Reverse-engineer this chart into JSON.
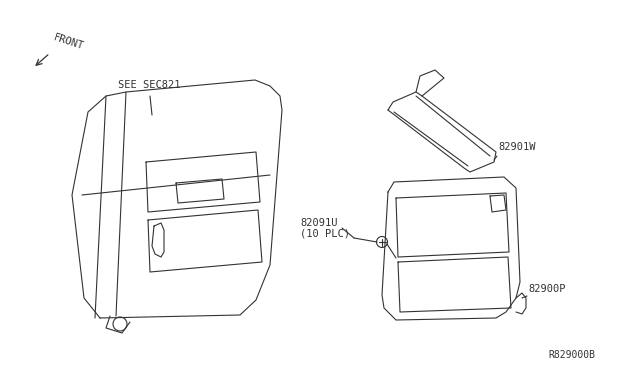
{
  "background_color": "#ffffff",
  "diagram_id": "R829000B",
  "labels": {
    "front_arrow": "FRONT",
    "see_sec": "SEE SEC821",
    "part1": "82901W",
    "part2": "82091U",
    "part2_sub": "(10 PLC)",
    "part3": "82900P"
  },
  "line_color": "#333333",
  "text_color": "#333333",
  "font_size": 7.5,
  "line_width": 0.8
}
